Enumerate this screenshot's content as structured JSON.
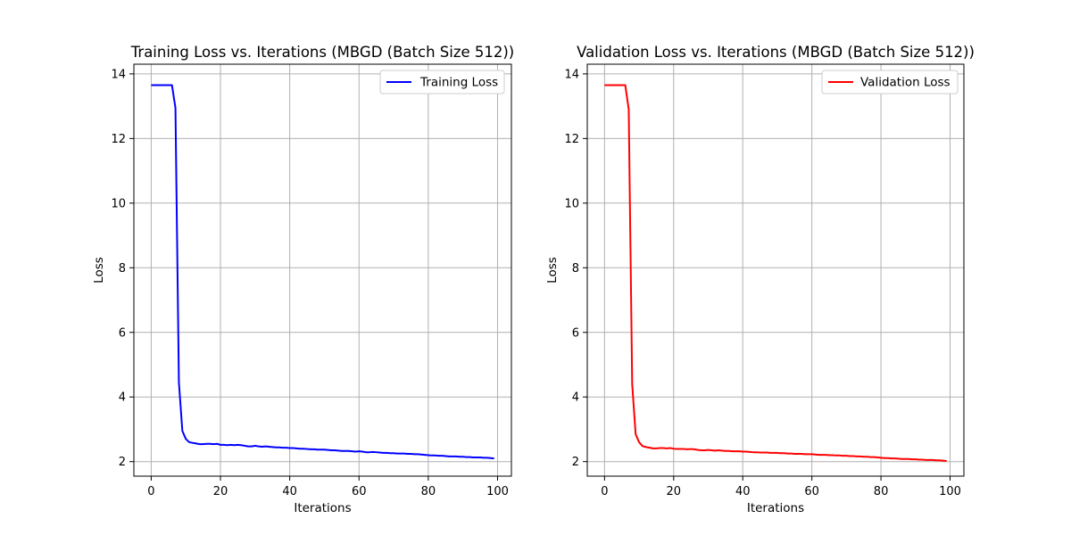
{
  "chart_data": [
    {
      "type": "line",
      "title": "Training Loss vs. Iterations (MBGD (Batch Size 512))",
      "xlabel": "Iterations",
      "ylabel": "Loss",
      "xlim": [
        -5,
        104
      ],
      "ylim": [
        1.55,
        14.3
      ],
      "xticks": [
        0,
        20,
        40,
        60,
        80,
        100
      ],
      "yticks": [
        2,
        4,
        6,
        8,
        10,
        12,
        14
      ],
      "grid": true,
      "legend": "top-right",
      "series": [
        {
          "name": "Training Loss",
          "color": "#0000ff",
          "x": [
            0,
            1,
            2,
            3,
            4,
            5,
            6,
            7,
            8,
            9,
            10,
            11,
            12,
            13,
            14,
            15,
            16,
            17,
            18,
            19,
            20,
            21,
            22,
            23,
            24,
            25,
            26,
            27,
            28,
            29,
            30,
            31,
            32,
            33,
            34,
            35,
            36,
            37,
            38,
            39,
            40,
            41,
            42,
            43,
            44,
            45,
            46,
            47,
            48,
            49,
            50,
            51,
            52,
            53,
            54,
            55,
            56,
            57,
            58,
            59,
            60,
            61,
            62,
            63,
            64,
            65,
            66,
            67,
            68,
            69,
            70,
            71,
            72,
            73,
            74,
            75,
            76,
            77,
            78,
            79,
            80,
            81,
            82,
            83,
            84,
            85,
            86,
            87,
            88,
            89,
            90,
            91,
            92,
            93,
            94,
            95,
            96,
            97,
            98,
            99
          ],
          "y": [
            13.65,
            13.65,
            13.65,
            13.65,
            13.65,
            13.65,
            13.65,
            12.95,
            4.45,
            2.95,
            2.7,
            2.6,
            2.58,
            2.56,
            2.54,
            2.54,
            2.55,
            2.55,
            2.54,
            2.55,
            2.52,
            2.52,
            2.51,
            2.52,
            2.51,
            2.52,
            2.51,
            2.49,
            2.47,
            2.47,
            2.49,
            2.47,
            2.46,
            2.47,
            2.46,
            2.45,
            2.44,
            2.44,
            2.43,
            2.43,
            2.42,
            2.42,
            2.41,
            2.4,
            2.4,
            2.39,
            2.38,
            2.38,
            2.37,
            2.37,
            2.37,
            2.36,
            2.35,
            2.35,
            2.34,
            2.33,
            2.33,
            2.33,
            2.32,
            2.31,
            2.32,
            2.31,
            2.29,
            2.29,
            2.3,
            2.29,
            2.28,
            2.27,
            2.27,
            2.26,
            2.26,
            2.25,
            2.25,
            2.25,
            2.24,
            2.24,
            2.23,
            2.23,
            2.22,
            2.21,
            2.2,
            2.19,
            2.19,
            2.18,
            2.18,
            2.17,
            2.16,
            2.16,
            2.16,
            2.15,
            2.15,
            2.14,
            2.14,
            2.13,
            2.13,
            2.13,
            2.12,
            2.12,
            2.11,
            2.1
          ]
        }
      ]
    },
    {
      "type": "line",
      "title": "Validation Loss vs. Iterations (MBGD (Batch Size 512))",
      "xlabel": "Iterations",
      "ylabel": "Loss",
      "xlim": [
        -5,
        104
      ],
      "ylim": [
        1.55,
        14.3
      ],
      "xticks": [
        0,
        20,
        40,
        60,
        80,
        100
      ],
      "yticks": [
        2,
        4,
        6,
        8,
        10,
        12,
        14
      ],
      "grid": true,
      "legend": "top-right",
      "series": [
        {
          "name": "Validation Loss",
          "color": "#ff0000",
          "x": [
            0,
            1,
            2,
            3,
            4,
            5,
            6,
            7,
            8,
            9,
            10,
            11,
            12,
            13,
            14,
            15,
            16,
            17,
            18,
            19,
            20,
            21,
            22,
            23,
            24,
            25,
            26,
            27,
            28,
            29,
            30,
            31,
            32,
            33,
            34,
            35,
            36,
            37,
            38,
            39,
            40,
            41,
            42,
            43,
            44,
            45,
            46,
            47,
            48,
            49,
            50,
            51,
            52,
            53,
            54,
            55,
            56,
            57,
            58,
            59,
            60,
            61,
            62,
            63,
            64,
            65,
            66,
            67,
            68,
            69,
            70,
            71,
            72,
            73,
            74,
            75,
            76,
            77,
            78,
            79,
            80,
            81,
            82,
            83,
            84,
            85,
            86,
            87,
            88,
            89,
            90,
            91,
            92,
            93,
            94,
            95,
            96,
            97,
            98,
            99
          ],
          "y": [
            13.65,
            13.65,
            13.65,
            13.65,
            13.65,
            13.65,
            13.65,
            12.9,
            4.4,
            2.85,
            2.6,
            2.48,
            2.45,
            2.43,
            2.41,
            2.41,
            2.42,
            2.42,
            2.41,
            2.42,
            2.4,
            2.39,
            2.39,
            2.39,
            2.38,
            2.39,
            2.38,
            2.36,
            2.35,
            2.35,
            2.36,
            2.35,
            2.34,
            2.35,
            2.34,
            2.33,
            2.33,
            2.32,
            2.32,
            2.32,
            2.31,
            2.31,
            2.3,
            2.29,
            2.29,
            2.28,
            2.28,
            2.28,
            2.27,
            2.27,
            2.27,
            2.26,
            2.26,
            2.25,
            2.25,
            2.24,
            2.24,
            2.24,
            2.23,
            2.23,
            2.23,
            2.22,
            2.21,
            2.21,
            2.21,
            2.2,
            2.2,
            2.19,
            2.19,
            2.18,
            2.18,
            2.17,
            2.17,
            2.16,
            2.16,
            2.15,
            2.15,
            2.14,
            2.14,
            2.13,
            2.12,
            2.11,
            2.11,
            2.1,
            2.1,
            2.09,
            2.08,
            2.08,
            2.08,
            2.07,
            2.07,
            2.06,
            2.06,
            2.05,
            2.05,
            2.05,
            2.04,
            2.04,
            2.03,
            2.02
          ]
        }
      ]
    }
  ]
}
